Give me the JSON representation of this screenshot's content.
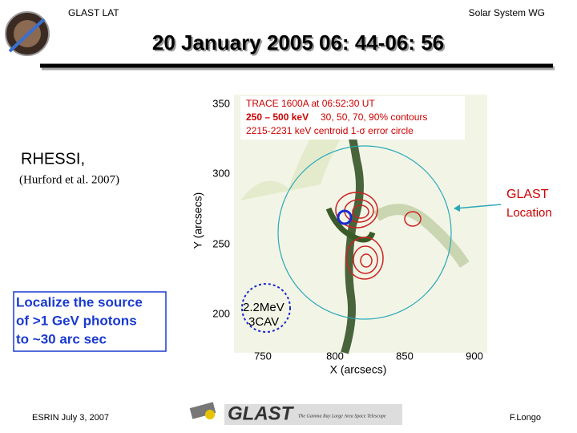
{
  "header": {
    "left": "GLAST LAT",
    "right": "Solar System WG",
    "title": "20 January 2005  06: 44-06: 56"
  },
  "image": {
    "legend": {
      "line1": "TRACE 1600A  at  06:52:30 UT",
      "line2_energy": "250 – 500 keV",
      "line2_rest": "30, 50, 70, 90% contours",
      "line3": "2215-2231 keV centroid  1-σ error circle"
    },
    "y_label": "Y (arcsecs)",
    "x_label": "X (arcsecs)",
    "yticks": [
      350,
      300,
      250,
      200
    ],
    "xticks": [
      750,
      800,
      850,
      900
    ],
    "inset": [
      "2.2MeV",
      "3CAV"
    ]
  },
  "source": {
    "name": "RHESSI,",
    "reference": "(Hurford et al. 2007)"
  },
  "glast_label": [
    "GLAST",
    "Location"
  ],
  "callout": [
    "Localize the source",
    "of >1 GeV photons",
    "to ~30 arc sec"
  ],
  "footer": {
    "left": "ESRIN July 3, 2007",
    "logo": "GLAST",
    "tagline": "The Gamma Ray Large Area Space Telescope",
    "right": "F.Longo"
  }
}
